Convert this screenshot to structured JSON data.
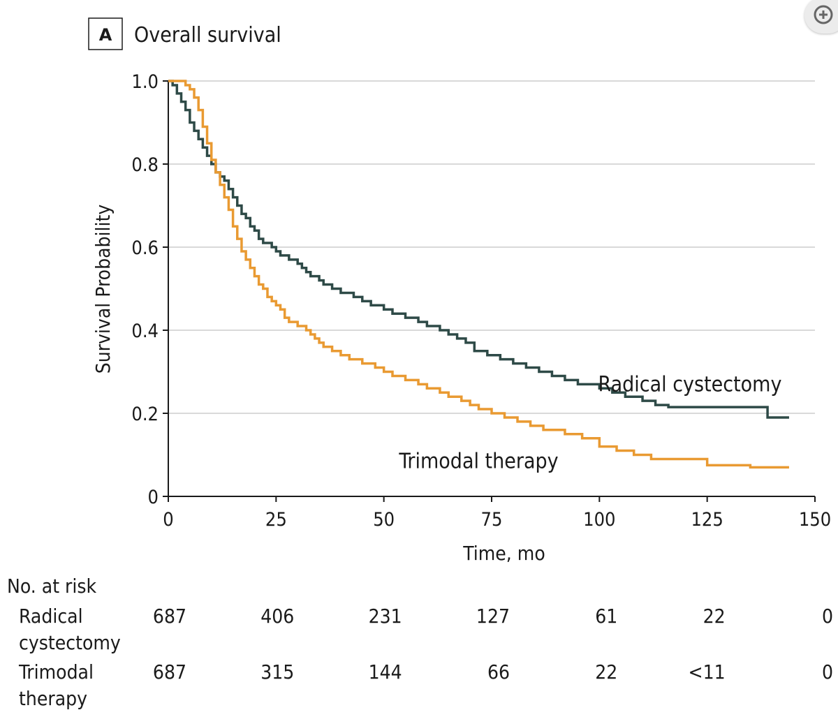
{
  "panel_letter": "A",
  "chart_data": {
    "type": "line",
    "step": true,
    "title": "Overall survival",
    "xlabel": "Time, mo",
    "ylabel": "Survival Probability",
    "xlim": [
      0,
      150
    ],
    "ylim": [
      0,
      1.0
    ],
    "x_ticks": [
      0,
      25,
      50,
      75,
      100,
      125,
      150
    ],
    "x_tick_labels": [
      "0",
      "25",
      "50",
      "75",
      "100",
      "125",
      "150"
    ],
    "y_ticks": [
      0,
      0.2,
      0.4,
      0.6,
      0.8,
      1.0
    ],
    "y_tick_labels": [
      "0",
      "0.2",
      "0.4",
      "0.6",
      "0.8",
      "1.0"
    ],
    "grid": "horizontal",
    "series": [
      {
        "name": "Radical cystectomy",
        "color": "#2e4a47",
        "points": [
          [
            0,
            1.0
          ],
          [
            1,
            0.99
          ],
          [
            2,
            0.97
          ],
          [
            3,
            0.95
          ],
          [
            4,
            0.93
          ],
          [
            5,
            0.9
          ],
          [
            6,
            0.88
          ],
          [
            7,
            0.86
          ],
          [
            8,
            0.84
          ],
          [
            9,
            0.82
          ],
          [
            10,
            0.8
          ],
          [
            11,
            0.78
          ],
          [
            12,
            0.77
          ],
          [
            13,
            0.76
          ],
          [
            14,
            0.74
          ],
          [
            15,
            0.72
          ],
          [
            16,
            0.7
          ],
          [
            17,
            0.68
          ],
          [
            18,
            0.67
          ],
          [
            19,
            0.65
          ],
          [
            20,
            0.64
          ],
          [
            21,
            0.62
          ],
          [
            22,
            0.61
          ],
          [
            24,
            0.6
          ],
          [
            25,
            0.59
          ],
          [
            26,
            0.58
          ],
          [
            28,
            0.57
          ],
          [
            30,
            0.56
          ],
          [
            31,
            0.55
          ],
          [
            32,
            0.54
          ],
          [
            33,
            0.53
          ],
          [
            35,
            0.52
          ],
          [
            36,
            0.51
          ],
          [
            38,
            0.5
          ],
          [
            40,
            0.49
          ],
          [
            43,
            0.48
          ],
          [
            45,
            0.47
          ],
          [
            47,
            0.46
          ],
          [
            50,
            0.45
          ],
          [
            52,
            0.44
          ],
          [
            55,
            0.43
          ],
          [
            58,
            0.42
          ],
          [
            60,
            0.41
          ],
          [
            63,
            0.4
          ],
          [
            65,
            0.39
          ],
          [
            67,
            0.38
          ],
          [
            69,
            0.37
          ],
          [
            71,
            0.35
          ],
          [
            74,
            0.34
          ],
          [
            77,
            0.33
          ],
          [
            80,
            0.32
          ],
          [
            83,
            0.31
          ],
          [
            86,
            0.3
          ],
          [
            89,
            0.29
          ],
          [
            92,
            0.28
          ],
          [
            95,
            0.27
          ],
          [
            100,
            0.26
          ],
          [
            103,
            0.25
          ],
          [
            106,
            0.24
          ],
          [
            110,
            0.23
          ],
          [
            113,
            0.22
          ],
          [
            116,
            0.215
          ],
          [
            124,
            0.215
          ],
          [
            139,
            0.215
          ],
          [
            139,
            0.19
          ],
          [
            144,
            0.19
          ]
        ]
      },
      {
        "name": "Trimodal therapy",
        "color": "#e99a32",
        "points": [
          [
            0,
            1.0
          ],
          [
            3,
            1.0
          ],
          [
            4,
            0.99
          ],
          [
            5,
            0.98
          ],
          [
            6,
            0.96
          ],
          [
            7,
            0.93
          ],
          [
            8,
            0.89
          ],
          [
            9,
            0.85
          ],
          [
            10,
            0.81
          ],
          [
            11,
            0.78
          ],
          [
            12,
            0.75
          ],
          [
            13,
            0.72
          ],
          [
            14,
            0.69
          ],
          [
            15,
            0.65
          ],
          [
            16,
            0.62
          ],
          [
            17,
            0.59
          ],
          [
            18,
            0.57
          ],
          [
            19,
            0.55
          ],
          [
            20,
            0.53
          ],
          [
            21,
            0.51
          ],
          [
            22,
            0.5
          ],
          [
            23,
            0.48
          ],
          [
            24,
            0.47
          ],
          [
            25,
            0.46
          ],
          [
            26,
            0.45
          ],
          [
            27,
            0.43
          ],
          [
            28,
            0.42
          ],
          [
            30,
            0.41
          ],
          [
            32,
            0.4
          ],
          [
            33,
            0.39
          ],
          [
            34,
            0.38
          ],
          [
            35,
            0.37
          ],
          [
            36,
            0.36
          ],
          [
            38,
            0.35
          ],
          [
            40,
            0.34
          ],
          [
            42,
            0.33
          ],
          [
            45,
            0.32
          ],
          [
            48,
            0.31
          ],
          [
            50,
            0.3
          ],
          [
            52,
            0.29
          ],
          [
            55,
            0.28
          ],
          [
            58,
            0.27
          ],
          [
            60,
            0.26
          ],
          [
            63,
            0.25
          ],
          [
            65,
            0.24
          ],
          [
            68,
            0.23
          ],
          [
            70,
            0.22
          ],
          [
            72,
            0.21
          ],
          [
            75,
            0.2
          ],
          [
            78,
            0.19
          ],
          [
            81,
            0.18
          ],
          [
            84,
            0.17
          ],
          [
            87,
            0.16
          ],
          [
            92,
            0.15
          ],
          [
            96,
            0.14
          ],
          [
            100,
            0.12
          ],
          [
            104,
            0.11
          ],
          [
            108,
            0.1
          ],
          [
            112,
            0.09
          ],
          [
            125,
            0.075
          ],
          [
            135,
            0.07
          ],
          [
            144,
            0.07
          ]
        ]
      }
    ],
    "annotations": [
      {
        "text": "Radical cystectomy",
        "x": 121,
        "y": 0.27
      },
      {
        "text": "Trimodal therapy",
        "x": 72,
        "y": 0.085
      }
    ]
  },
  "risk_table": {
    "title": "No. at risk",
    "times": [
      0,
      25,
      50,
      75,
      100,
      125,
      150
    ],
    "rows": [
      {
        "label_lines": [
          "Radical",
          "cystectomy"
        ],
        "values": [
          "687",
          "406",
          "231",
          "127",
          "61",
          "22",
          "0"
        ]
      },
      {
        "label_lines": [
          "Trimodal",
          "therapy"
        ],
        "values": [
          "687",
          "315",
          "144",
          "66",
          "22",
          "<11",
          "0"
        ]
      }
    ]
  },
  "zoom_icon": "zoom-in-icon"
}
